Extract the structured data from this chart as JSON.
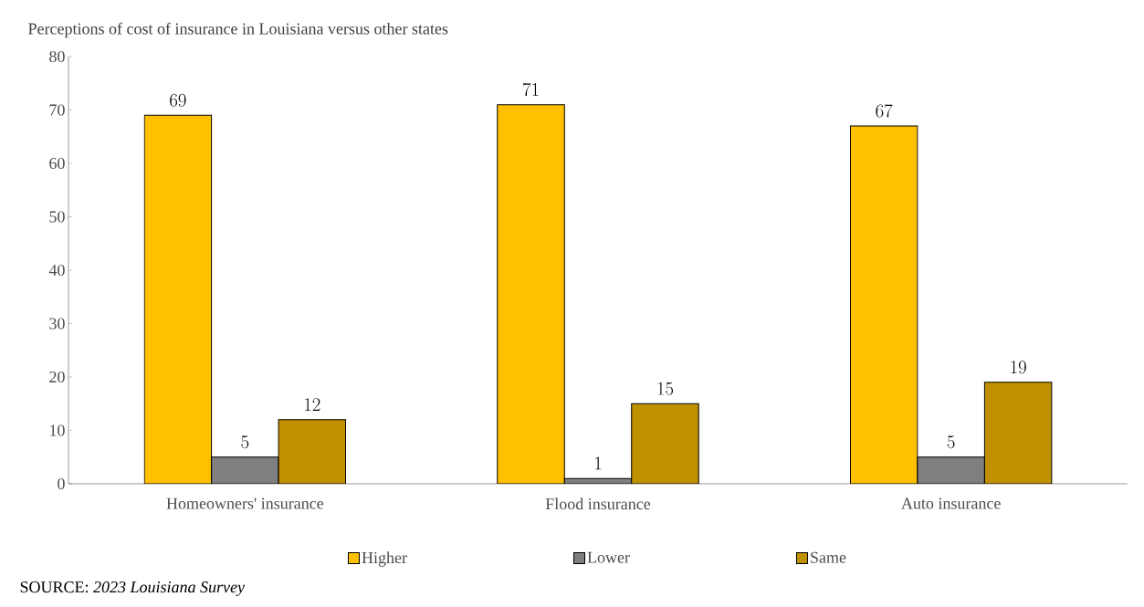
{
  "chart_data": {
    "type": "bar",
    "title": "Perceptions of cost of insurance in Louisiana versus other states",
    "categories": [
      "Homeowners' insurance",
      "Flood insurance",
      "Auto insurance"
    ],
    "series": [
      {
        "name": "Higher",
        "color": "#ffc000",
        "values": [
          69,
          71,
          67
        ]
      },
      {
        "name": "Lower",
        "color": "#7f7f7f",
        "values": [
          5,
          1,
          5
        ]
      },
      {
        "name": "Same",
        "color": "#bf9000",
        "values": [
          12,
          15,
          19
        ]
      }
    ],
    "ylim": [
      0,
      80
    ],
    "yticks": [
      0,
      10,
      20,
      30,
      40,
      50,
      60,
      70,
      80
    ],
    "data_labels": true,
    "legend": "bottom",
    "grid": false,
    "annotations": [
      "SOURCE: *2023 Louisiana Survey*"
    ]
  }
}
